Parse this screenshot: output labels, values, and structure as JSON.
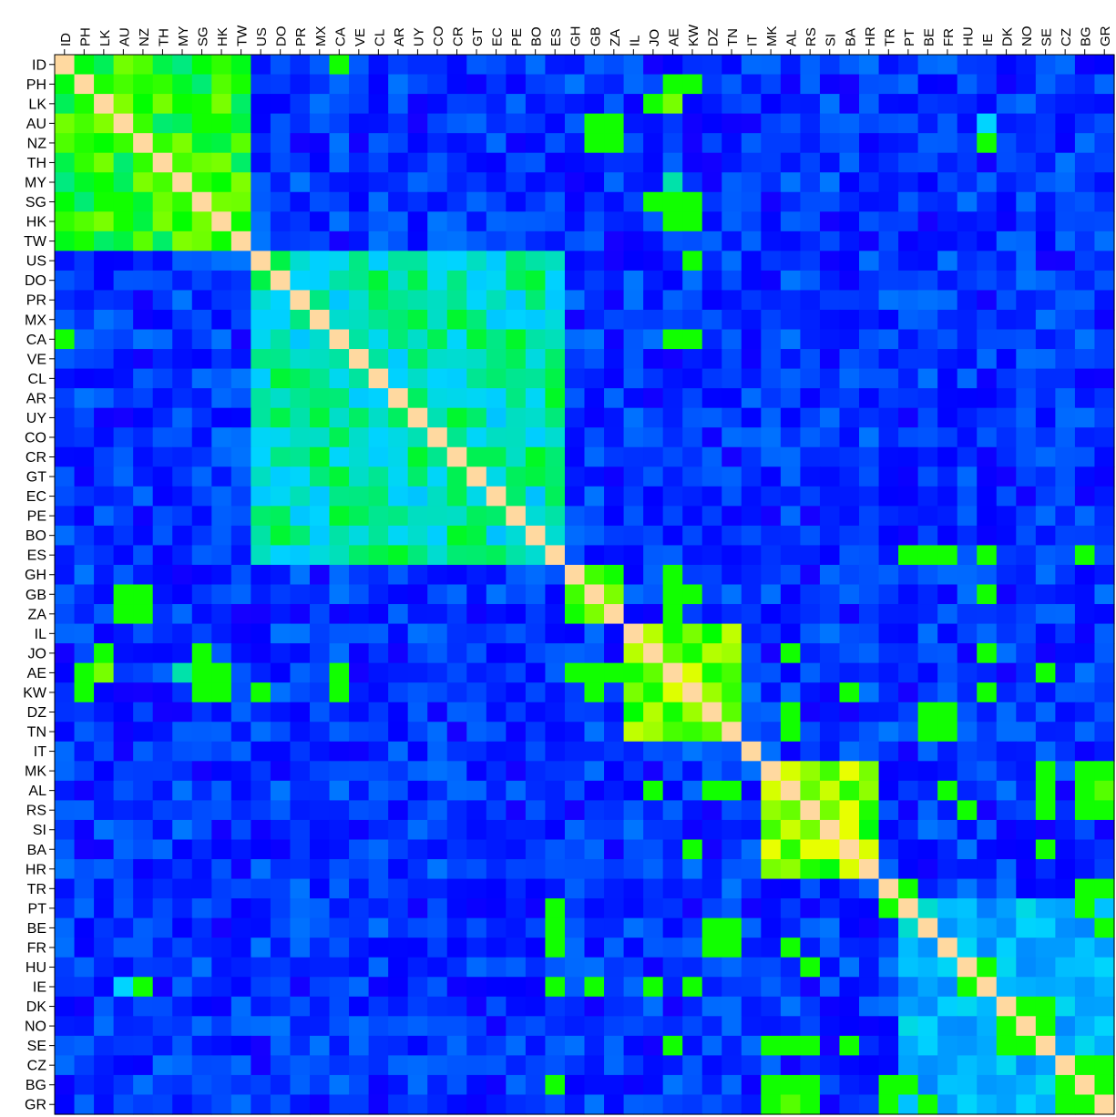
{
  "chart_data": {
    "type": "heatmap",
    "title": "",
    "xlabel": "",
    "ylabel": "",
    "labels": [
      "ID",
      "PH",
      "LK",
      "AU",
      "NZ",
      "TH",
      "MY",
      "SG",
      "HK",
      "TW",
      "US",
      "DO",
      "PR",
      "MX",
      "CA",
      "VE",
      "CL",
      "AR",
      "UY",
      "CO",
      "CR",
      "GT",
      "EC",
      "PE",
      "BO",
      "ES",
      "GH",
      "GB",
      "ZA",
      "IL",
      "JO",
      "AE",
      "KW",
      "DZ",
      "TN",
      "IT",
      "MK",
      "AL",
      "RS",
      "SI",
      "BA",
      "HR",
      "TR",
      "PT",
      "BE",
      "FR",
      "HU",
      "IE",
      "DK",
      "NO",
      "SE",
      "CZ",
      "BG",
      "GR"
    ],
    "value_scale": "0 = low similarity (violet/blue), 1 = identical (diagonal, beige)",
    "colormap": [
      {
        "stop": 0.0,
        "color": "#6a00ff"
      },
      {
        "stop": 0.15,
        "color": "#0000ff"
      },
      {
        "stop": 0.35,
        "color": "#0070ff"
      },
      {
        "stop": 0.5,
        "color": "#00d4ff"
      },
      {
        "stop": 0.65,
        "color": "#00ff00"
      },
      {
        "stop": 0.8,
        "color": "#ffff00"
      },
      {
        "stop": 1.0,
        "color": "#ffd9a0"
      }
    ],
    "clusters": [
      {
        "members": [
          "ID",
          "PH",
          "LK",
          "AU",
          "NZ",
          "TH",
          "MY",
          "SG",
          "HK",
          "TW"
        ],
        "level": 0.65
      },
      {
        "members": [
          "US",
          "DO",
          "PR",
          "MX",
          "CA",
          "VE",
          "CL",
          "AR",
          "UY",
          "CO",
          "CR",
          "GT",
          "EC",
          "PE",
          "BO",
          "ES"
        ],
        "level": 0.55
      },
      {
        "members": [
          "GH",
          "GB",
          "ZA"
        ],
        "level": 0.65
      },
      {
        "members": [
          "IL",
          "JO",
          "AE",
          "KW",
          "DZ",
          "TN"
        ],
        "level": 0.72
      },
      {
        "members": [
          "MK",
          "AL",
          "RS",
          "SI",
          "BA",
          "HR"
        ],
        "level": 0.72
      },
      {
        "members": [
          "PT",
          "BE",
          "FR",
          "HU",
          "IE",
          "DK",
          "NO",
          "SE",
          "CZ",
          "BG",
          "GR"
        ],
        "level": 0.45
      }
    ],
    "extra_pairs": [
      {
        "a": "SG",
        "b": "AU",
        "value": 0.66
      },
      {
        "a": "HK",
        "b": "AU",
        "value": 0.66
      },
      {
        "a": "SG",
        "b": "LK",
        "value": 0.66
      },
      {
        "a": "ID",
        "b": "CA",
        "value": 0.66
      },
      {
        "a": "US",
        "b": "KW",
        "value": 0.66
      },
      {
        "a": "CA",
        "b": "AE",
        "value": 0.66
      },
      {
        "a": "CA",
        "b": "KW",
        "value": 0.66
      },
      {
        "a": "AU",
        "b": "GB",
        "value": 0.66
      },
      {
        "a": "NZ",
        "b": "GB",
        "value": 0.66
      },
      {
        "a": "AU",
        "b": "ZA",
        "value": 0.66
      },
      {
        "a": "NZ",
        "b": "ZA",
        "value": 0.66
      },
      {
        "a": "NZ",
        "b": "IE",
        "value": 0.66
      },
      {
        "a": "AU",
        "b": "IE",
        "value": 0.5
      },
      {
        "a": "MY",
        "b": "AE",
        "value": 0.55
      },
      {
        "a": "SG",
        "b": "AE",
        "value": 0.66
      },
      {
        "a": "HK",
        "b": "AE",
        "value": 0.66
      },
      {
        "a": "SG",
        "b": "JO",
        "value": 0.66
      },
      {
        "a": "SG",
        "b": "KW",
        "value": 0.66
      },
      {
        "a": "HK",
        "b": "KW",
        "value": 0.66
      },
      {
        "a": "LK",
        "b": "JO",
        "value": 0.66
      },
      {
        "a": "PH",
        "b": "AE",
        "value": 0.66
      },
      {
        "a": "PH",
        "b": "KW",
        "value": 0.66
      },
      {
        "a": "LK",
        "b": "AE",
        "value": 0.72
      },
      {
        "a": "ES",
        "b": "PT",
        "value": 0.66
      },
      {
        "a": "ES",
        "b": "BE",
        "value": 0.66
      },
      {
        "a": "ES",
        "b": "FR",
        "value": 0.66
      },
      {
        "a": "ES",
        "b": "IE",
        "value": 0.66
      },
      {
        "a": "ES",
        "b": "BG",
        "value": 0.66
      },
      {
        "a": "GH",
        "b": "AE",
        "value": 0.66
      },
      {
        "a": "GB",
        "b": "AE",
        "value": 0.66
      },
      {
        "a": "GB",
        "b": "KW",
        "value": 0.66
      },
      {
        "a": "GB",
        "b": "IE",
        "value": 0.66
      },
      {
        "a": "ZA",
        "b": "AE",
        "value": 0.66
      },
      {
        "a": "JO",
        "b": "IE",
        "value": 0.66
      },
      {
        "a": "AE",
        "b": "SE",
        "value": 0.66
      },
      {
        "a": "KW",
        "b": "IE",
        "value": 0.66
      },
      {
        "a": "AL",
        "b": "JO",
        "value": 0.66
      },
      {
        "a": "DZ",
        "b": "AL",
        "value": 0.66
      },
      {
        "a": "TN",
        "b": "AL",
        "value": 0.66
      },
      {
        "a": "DZ",
        "b": "BE",
        "value": 0.66
      },
      {
        "a": "DZ",
        "b": "FR",
        "value": 0.66
      },
      {
        "a": "TN",
        "b": "BE",
        "value": 0.66
      },
      {
        "a": "TN",
        "b": "FR",
        "value": 0.66
      },
      {
        "a": "KW",
        "b": "BA",
        "value": 0.66
      },
      {
        "a": "AL",
        "b": "FR",
        "value": 0.66
      },
      {
        "a": "RS",
        "b": "HU",
        "value": 0.66
      },
      {
        "a": "MK",
        "b": "SE",
        "value": 0.66
      },
      {
        "a": "AL",
        "b": "SE",
        "value": 0.66
      },
      {
        "a": "RS",
        "b": "SE",
        "value": 0.66
      },
      {
        "a": "BA",
        "b": "SE",
        "value": 0.66
      },
      {
        "a": "MK",
        "b": "BG",
        "value": 0.66
      },
      {
        "a": "MK",
        "b": "GR",
        "value": 0.66
      },
      {
        "a": "AL",
        "b": "GR",
        "value": 0.7
      },
      {
        "a": "RS",
        "b": "GR",
        "value": 0.66
      },
      {
        "a": "AL",
        "b": "BG",
        "value": 0.66
      },
      {
        "a": "RS",
        "b": "BG",
        "value": 0.66
      },
      {
        "a": "TR",
        "b": "BG",
        "value": 0.66
      },
      {
        "a": "PT",
        "b": "BG",
        "value": 0.66
      },
      {
        "a": "BE",
        "b": "GR",
        "value": 0.66
      },
      {
        "a": "PT",
        "b": "TR",
        "value": 0.66
      },
      {
        "a": "TR",
        "b": "GR",
        "value": 0.66
      },
      {
        "a": "BG",
        "b": "GR",
        "value": 0.66
      },
      {
        "a": "IE",
        "b": "HU",
        "value": 0.66
      },
      {
        "a": "DK",
        "b": "NO",
        "value": 0.66
      },
      {
        "a": "DK",
        "b": "SE",
        "value": 0.66
      },
      {
        "a": "NO",
        "b": "SE",
        "value": 0.66
      },
      {
        "a": "CZ",
        "b": "BG",
        "value": 0.66
      },
      {
        "a": "CZ",
        "b": "GR",
        "value": 0.66
      }
    ]
  }
}
